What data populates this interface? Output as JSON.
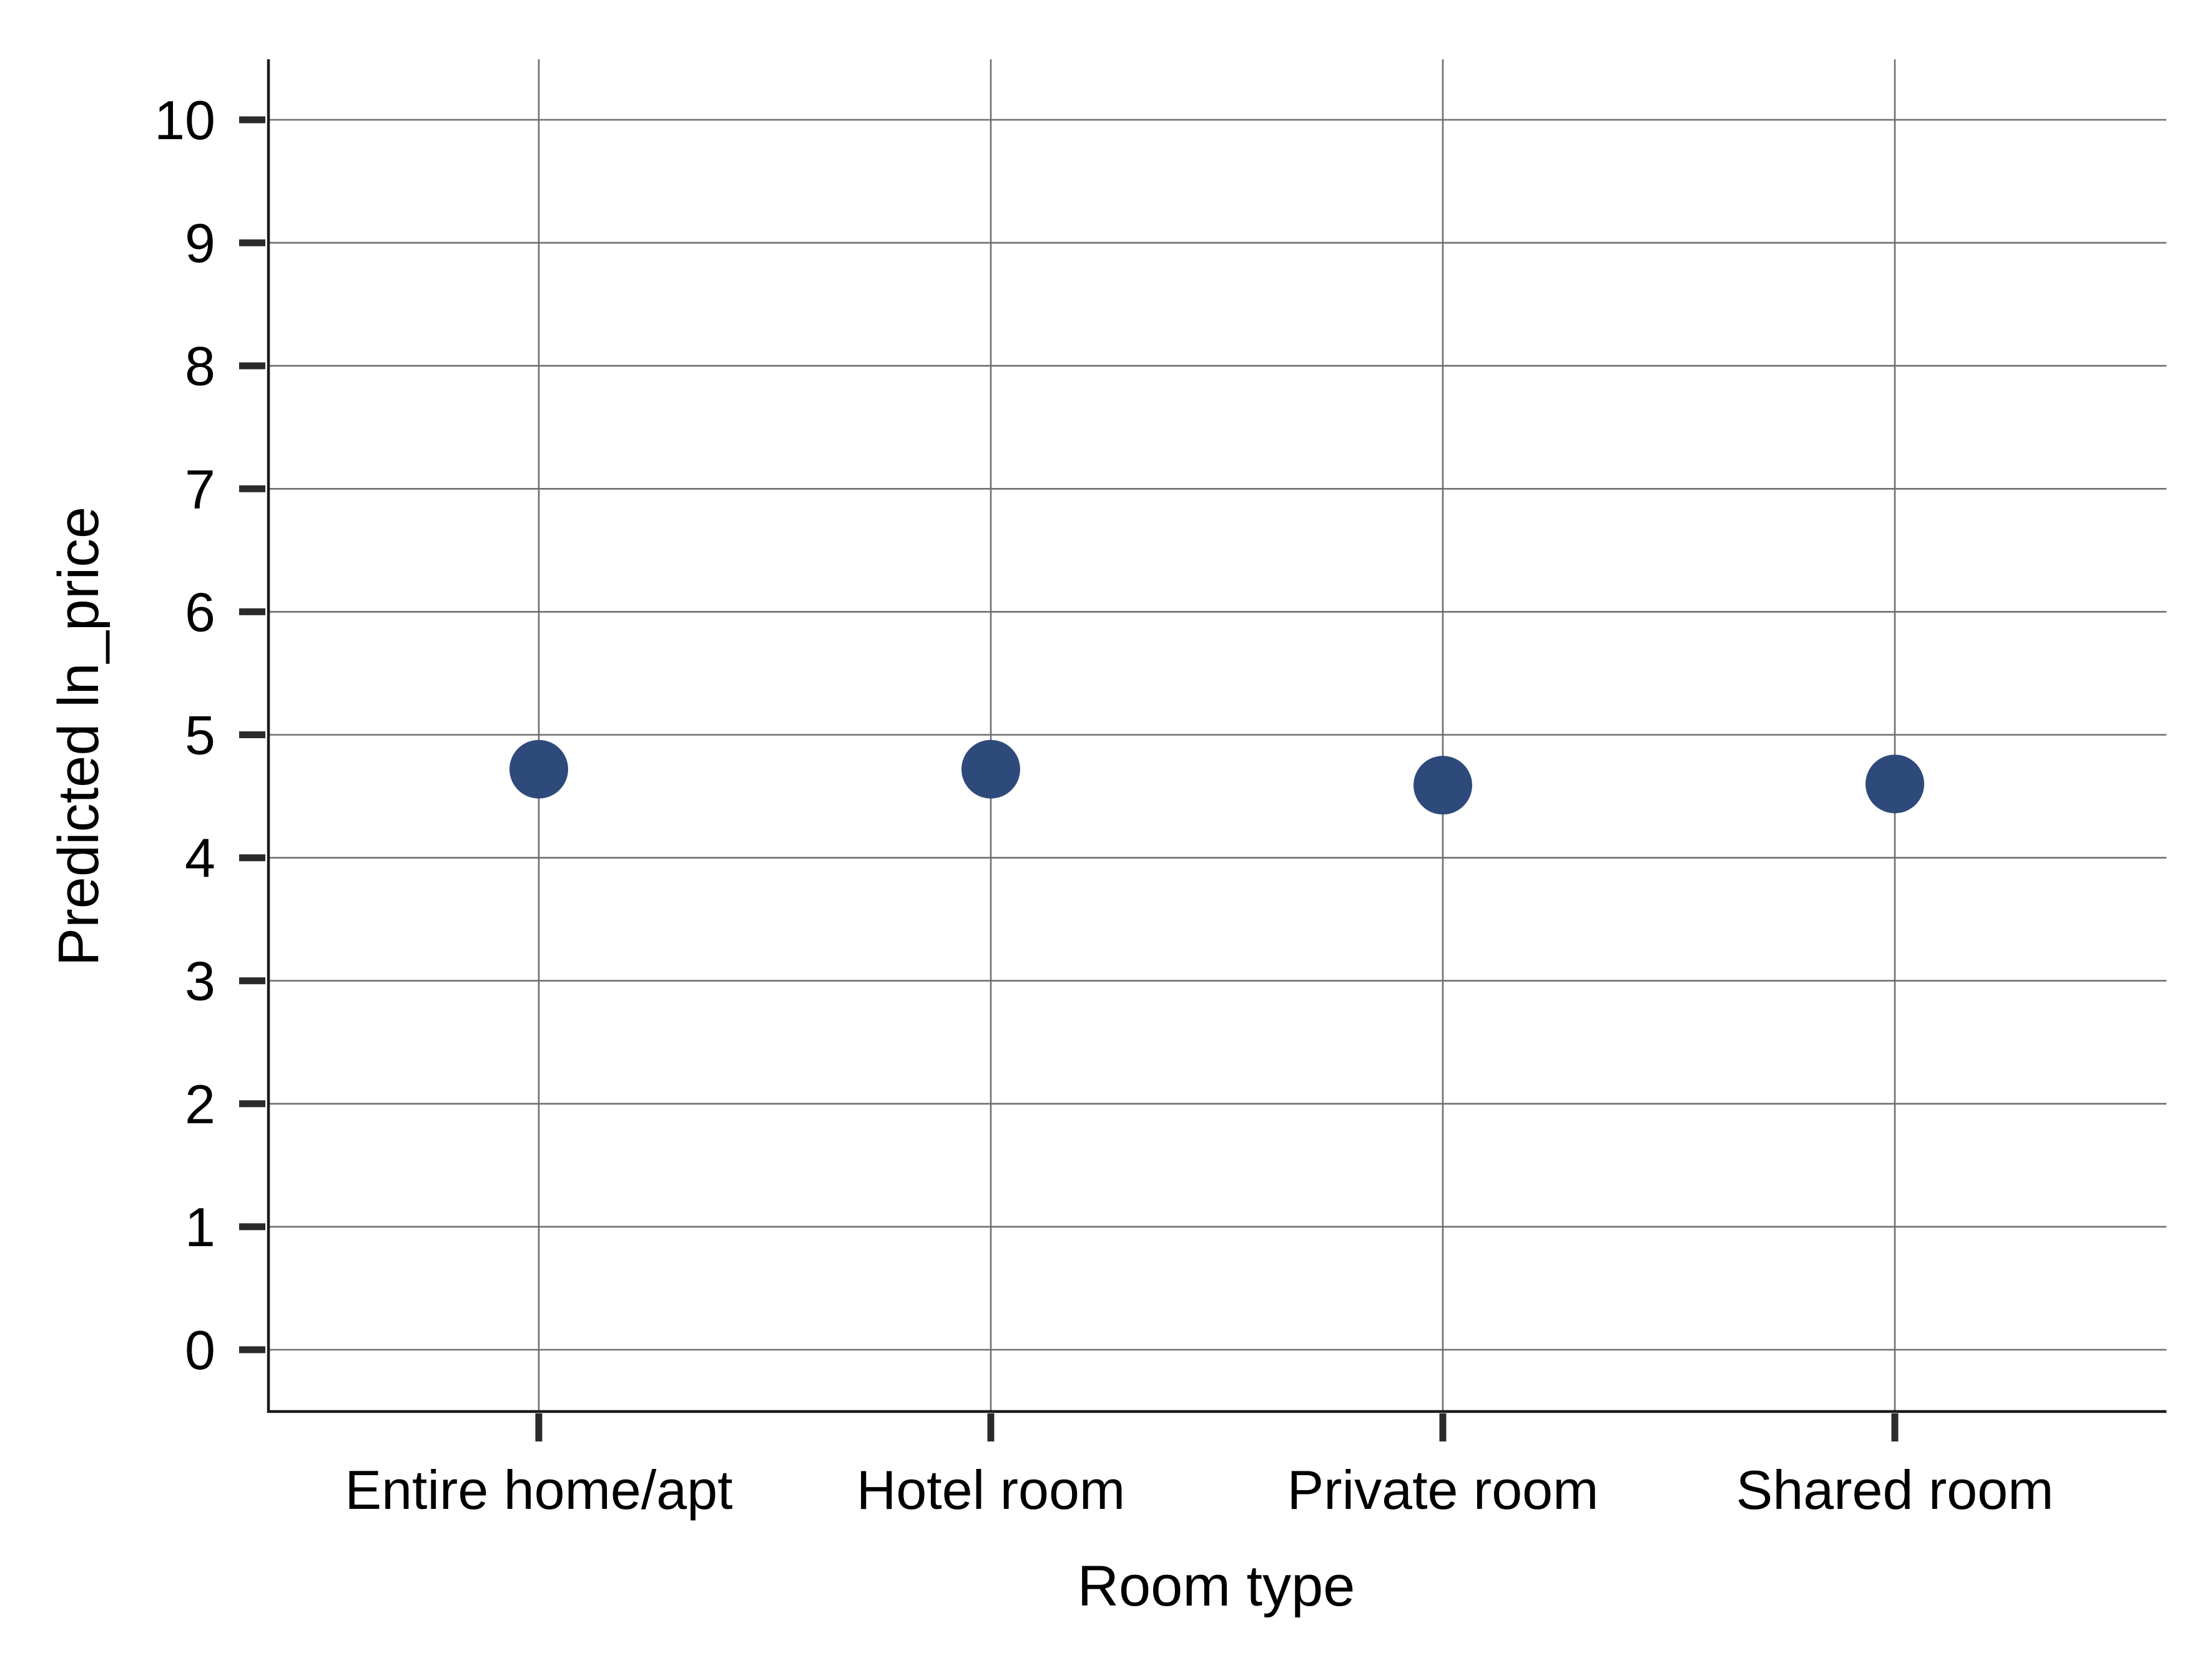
{
  "chart_data": {
    "type": "scatter",
    "title": "",
    "xlabel": "Room type",
    "ylabel": "Predicted ln_price",
    "categories": [
      "Entire home/apt",
      "Hotel room",
      "Private room",
      "Shared room"
    ],
    "series": [
      {
        "values": [
          4.72,
          4.72,
          4.59,
          4.6
        ]
      }
    ],
    "ylim": [
      -0.5,
      10.5
    ],
    "yticks": [
      0,
      1,
      2,
      3,
      4,
      5,
      6,
      7,
      8,
      9,
      10
    ],
    "grid": true,
    "legend": "none",
    "colors": {
      "point": "#2e4a7b",
      "grid": "#6e6e6e",
      "axis": "#1a1a1a"
    }
  }
}
